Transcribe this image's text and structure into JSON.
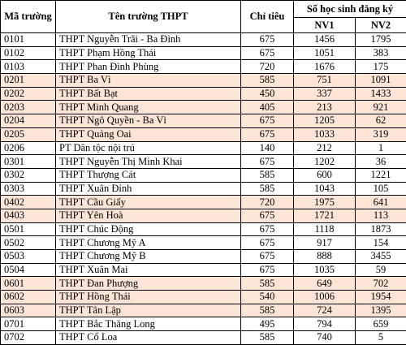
{
  "header": {
    "code": "Mã trường",
    "name": "Tên trường THPT",
    "quota": "Chỉ tiêu",
    "registered": "Số học sinh đăng ký",
    "nv1": "NV1",
    "nv2": "NV2"
  },
  "rows": [
    {
      "code": "0101",
      "name": "THPT Nguyễn Trãi - Ba Đình",
      "quota": "675",
      "nv1": "1456",
      "nv2": "1795"
    },
    {
      "code": "0102",
      "name": "THPT Phạm Hồng Thái",
      "quota": "675",
      "nv1": "1051",
      "nv2": "383"
    },
    {
      "code": "0103",
      "name": "THPT Phan Đình Phùng",
      "quota": "720",
      "nv1": "1676",
      "nv2": "175"
    },
    {
      "code": "0201",
      "name": "THPT Ba Vì",
      "quota": "585",
      "nv1": "751",
      "nv2": "1091"
    },
    {
      "code": "0202",
      "name": "THPT Bất Bạt",
      "quota": "450",
      "nv1": "337",
      "nv2": "1433"
    },
    {
      "code": "0203",
      "name": "THPT Minh Quang",
      "quota": "405",
      "nv1": "213",
      "nv2": "921"
    },
    {
      "code": "0204",
      "name": "THPT Ngô Quyền - Ba Vì",
      "quota": "675",
      "nv1": "1205",
      "nv2": "62"
    },
    {
      "code": "0205",
      "name": "THPT Quảng Oai",
      "quota": "675",
      "nv1": "1033",
      "nv2": "319"
    },
    {
      "code": "0206",
      "name": "PT Dân tộc nội trú",
      "quota": "140",
      "nv1": "212",
      "nv2": "1"
    },
    {
      "code": "0301",
      "name": "THPT Nguyễn Thị Minh Khai",
      "quota": "675",
      "nv1": "1202",
      "nv2": "36"
    },
    {
      "code": "0302",
      "name": "THPT Thượng Cát",
      "quota": "585",
      "nv1": "600",
      "nv2": "1221"
    },
    {
      "code": "0303",
      "name": "THPT Xuân Đỉnh",
      "quota": "585",
      "nv1": "1043",
      "nv2": "105"
    },
    {
      "code": "0402",
      "name": "THPT Cầu Giấy",
      "quota": "720",
      "nv1": "1975",
      "nv2": "641"
    },
    {
      "code": "0403",
      "name": "THPT Yên Hoà",
      "quota": "675",
      "nv1": "1721",
      "nv2": "113"
    },
    {
      "code": "0501",
      "name": "THPT Chúc Động",
      "quota": "675",
      "nv1": "1118",
      "nv2": "1873"
    },
    {
      "code": "0502",
      "name": "THPT Chương Mỹ A",
      "quota": "675",
      "nv1": "917",
      "nv2": "154"
    },
    {
      "code": "0503",
      "name": "THPT Chương Mỹ B",
      "quota": "675",
      "nv1": "888",
      "nv2": "3455"
    },
    {
      "code": "0504",
      "name": "THPT Xuân Mai",
      "quota": "675",
      "nv1": "1035",
      "nv2": "59"
    },
    {
      "code": "0601",
      "name": "THPT Đan Phượng",
      "quota": "585",
      "nv1": "649",
      "nv2": "702"
    },
    {
      "code": "0602",
      "name": "THPT Hồng Thái",
      "quota": "540",
      "nv1": "1006",
      "nv2": "1954"
    },
    {
      "code": "0603",
      "name": "THPT Tân Lập",
      "quota": "585",
      "nv1": "724",
      "nv2": "1395"
    },
    {
      "code": "0701",
      "name": "THPT Bắc Thăng Long",
      "quota": "495",
      "nv1": "794",
      "nv2": "659"
    },
    {
      "code": "0702",
      "name": "THPT Cổ Loa",
      "quota": "585",
      "nv1": "740",
      "nv2": "5"
    }
  ],
  "colors": {
    "shade": "#fce4d6",
    "plain": "#ffffff",
    "border": "#000000"
  }
}
